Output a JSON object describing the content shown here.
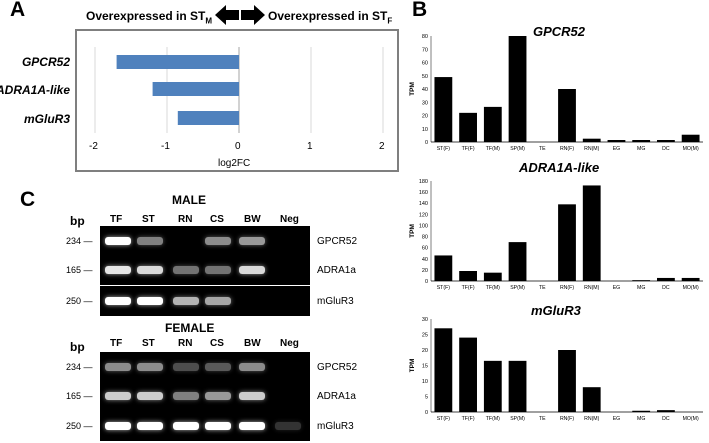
{
  "panels": {
    "A": "A",
    "B": "B",
    "C": "C"
  },
  "panelA": {
    "left_header": "Overexpressed in ST",
    "left_sub": "M",
    "right_header": "Overexpressed in ST",
    "right_sub": "F",
    "xlabel": "log2FC",
    "xticks": [
      "-2",
      "-1",
      "0",
      "1",
      "2"
    ],
    "genes": [
      "GPCR52",
      "ADRA1A-like",
      "mGluR3"
    ],
    "bar_color": "#4f81bd",
    "arrow_color": "#000000"
  },
  "chart_data": [
    {
      "type": "bar",
      "orientation": "horizontal",
      "categories": [
        "GPCR52",
        "ADRA1A-like",
        "mGluR3"
      ],
      "values": [
        -1.7,
        -1.2,
        -0.85
      ],
      "xlabel": "log2FC",
      "xlim": [
        -2,
        2
      ]
    },
    {
      "type": "bar",
      "title": "GPCR52",
      "ylabel": "TPM",
      "ylim": [
        0,
        80
      ],
      "yticks": [
        "0",
        "10",
        "20",
        "30",
        "40",
        "50",
        "60",
        "70",
        "80"
      ],
      "categories": [
        "ST(F)",
        "TF(F)",
        "TF(M)",
        "SP(M)",
        "TE",
        "RN(F)",
        "RN(M)",
        "EG",
        "MG",
        "DC",
        "MO(M)"
      ],
      "values": [
        49,
        22,
        26.5,
        80,
        0,
        40,
        2.5,
        1.5,
        1.5,
        1.5,
        5.5
      ]
    },
    {
      "type": "bar",
      "title": "ADRA1A-like",
      "ylabel": "TPM",
      "ylim": [
        0,
        180
      ],
      "yticks": [
        "0",
        "20",
        "40",
        "60",
        "80",
        "100",
        "120",
        "140",
        "160",
        "180"
      ],
      "categories": [
        "ST(F)",
        "TF(F)",
        "TF(M)",
        "SP(M)",
        "TE",
        "RN(F)",
        "RN(M)",
        "EG",
        "MG",
        "DC",
        "MO(M)"
      ],
      "values": [
        46,
        18,
        15,
        70,
        0,
        138,
        172,
        0,
        1.5,
        5.5,
        5.5
      ]
    },
    {
      "type": "bar",
      "title": "mGluR3",
      "ylabel": "TPM",
      "ylim": [
        0,
        30
      ],
      "yticks": [
        "0",
        "5",
        "10",
        "15",
        "20",
        "25",
        "30"
      ],
      "categories": [
        "ST(F)",
        "TF(F)",
        "TF(M)",
        "SP(M)",
        "TE",
        "RN(F)",
        "RN(M)",
        "EG",
        "MG",
        "DC",
        "MO(M)"
      ],
      "values": [
        27,
        24,
        16.5,
        16.5,
        0,
        20,
        8,
        0,
        0.4,
        0.6,
        0
      ]
    }
  ],
  "panelC": {
    "bp": "bp",
    "lanes": [
      "TF",
      "ST",
      "RN",
      "CS",
      "BW",
      "Neg"
    ],
    "male": {
      "title": "MALE",
      "rows": [
        {
          "bp": "234 —",
          "gene": "GPCR52",
          "bands": [
            1,
            0.5,
            0,
            0.55,
            0.6,
            0
          ]
        },
        {
          "bp": "165 —",
          "gene": "ADRA1a",
          "bands": [
            0.9,
            0.85,
            0.45,
            0.45,
            0.85,
            0
          ]
        },
        {
          "bp": "250 —",
          "gene": "mGluR3",
          "bands": [
            1,
            1,
            0.7,
            0.65,
            0,
            0
          ]
        }
      ]
    },
    "female": {
      "title": "FEMALE",
      "rows": [
        {
          "bp": "234 —",
          "gene": "GPCR52",
          "bands": [
            0.55,
            0.55,
            0.3,
            0.35,
            0.55,
            0
          ]
        },
        {
          "bp": "165 —",
          "gene": "ADRA1a",
          "bands": [
            0.8,
            0.8,
            0.5,
            0.6,
            0.8,
            0
          ]
        },
        {
          "bp": "250 —",
          "gene": "mGluR3",
          "bands": [
            1,
            1,
            1,
            1,
            1,
            0.2
          ]
        }
      ]
    }
  }
}
